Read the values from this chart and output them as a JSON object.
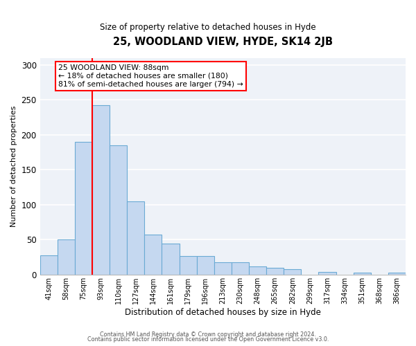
{
  "title": "25, WOODLAND VIEW, HYDE, SK14 2JB",
  "subtitle": "Size of property relative to detached houses in Hyde",
  "xlabel": "Distribution of detached houses by size in Hyde",
  "ylabel": "Number of detached properties",
  "bar_labels": [
    "41sqm",
    "58sqm",
    "75sqm",
    "93sqm",
    "110sqm",
    "127sqm",
    "144sqm",
    "161sqm",
    "179sqm",
    "196sqm",
    "213sqm",
    "230sqm",
    "248sqm",
    "265sqm",
    "282sqm",
    "299sqm",
    "317sqm",
    "334sqm",
    "351sqm",
    "368sqm",
    "386sqm"
  ],
  "bar_values": [
    28,
    50,
    190,
    243,
    185,
    105,
    57,
    44,
    27,
    27,
    18,
    18,
    12,
    10,
    8,
    0,
    4,
    0,
    3,
    0,
    3
  ],
  "bar_color": "#c5d8f0",
  "bar_edge_color": "#6aaad4",
  "property_line_color": "red",
  "annotation_title": "25 WOODLAND VIEW: 88sqm",
  "annotation_line1": "← 18% of detached houses are smaller (180)",
  "annotation_line2": "81% of semi-detached houses are larger (794) →",
  "ylim": [
    0,
    310
  ],
  "yticks": [
    0,
    50,
    100,
    150,
    200,
    250,
    300
  ],
  "footer1": "Contains HM Land Registry data © Crown copyright and database right 2024.",
  "footer2": "Contains public sector information licensed under the Open Government Licence v3.0.",
  "background_color": "#eef2f8",
  "grid_color": "#ffffff"
}
